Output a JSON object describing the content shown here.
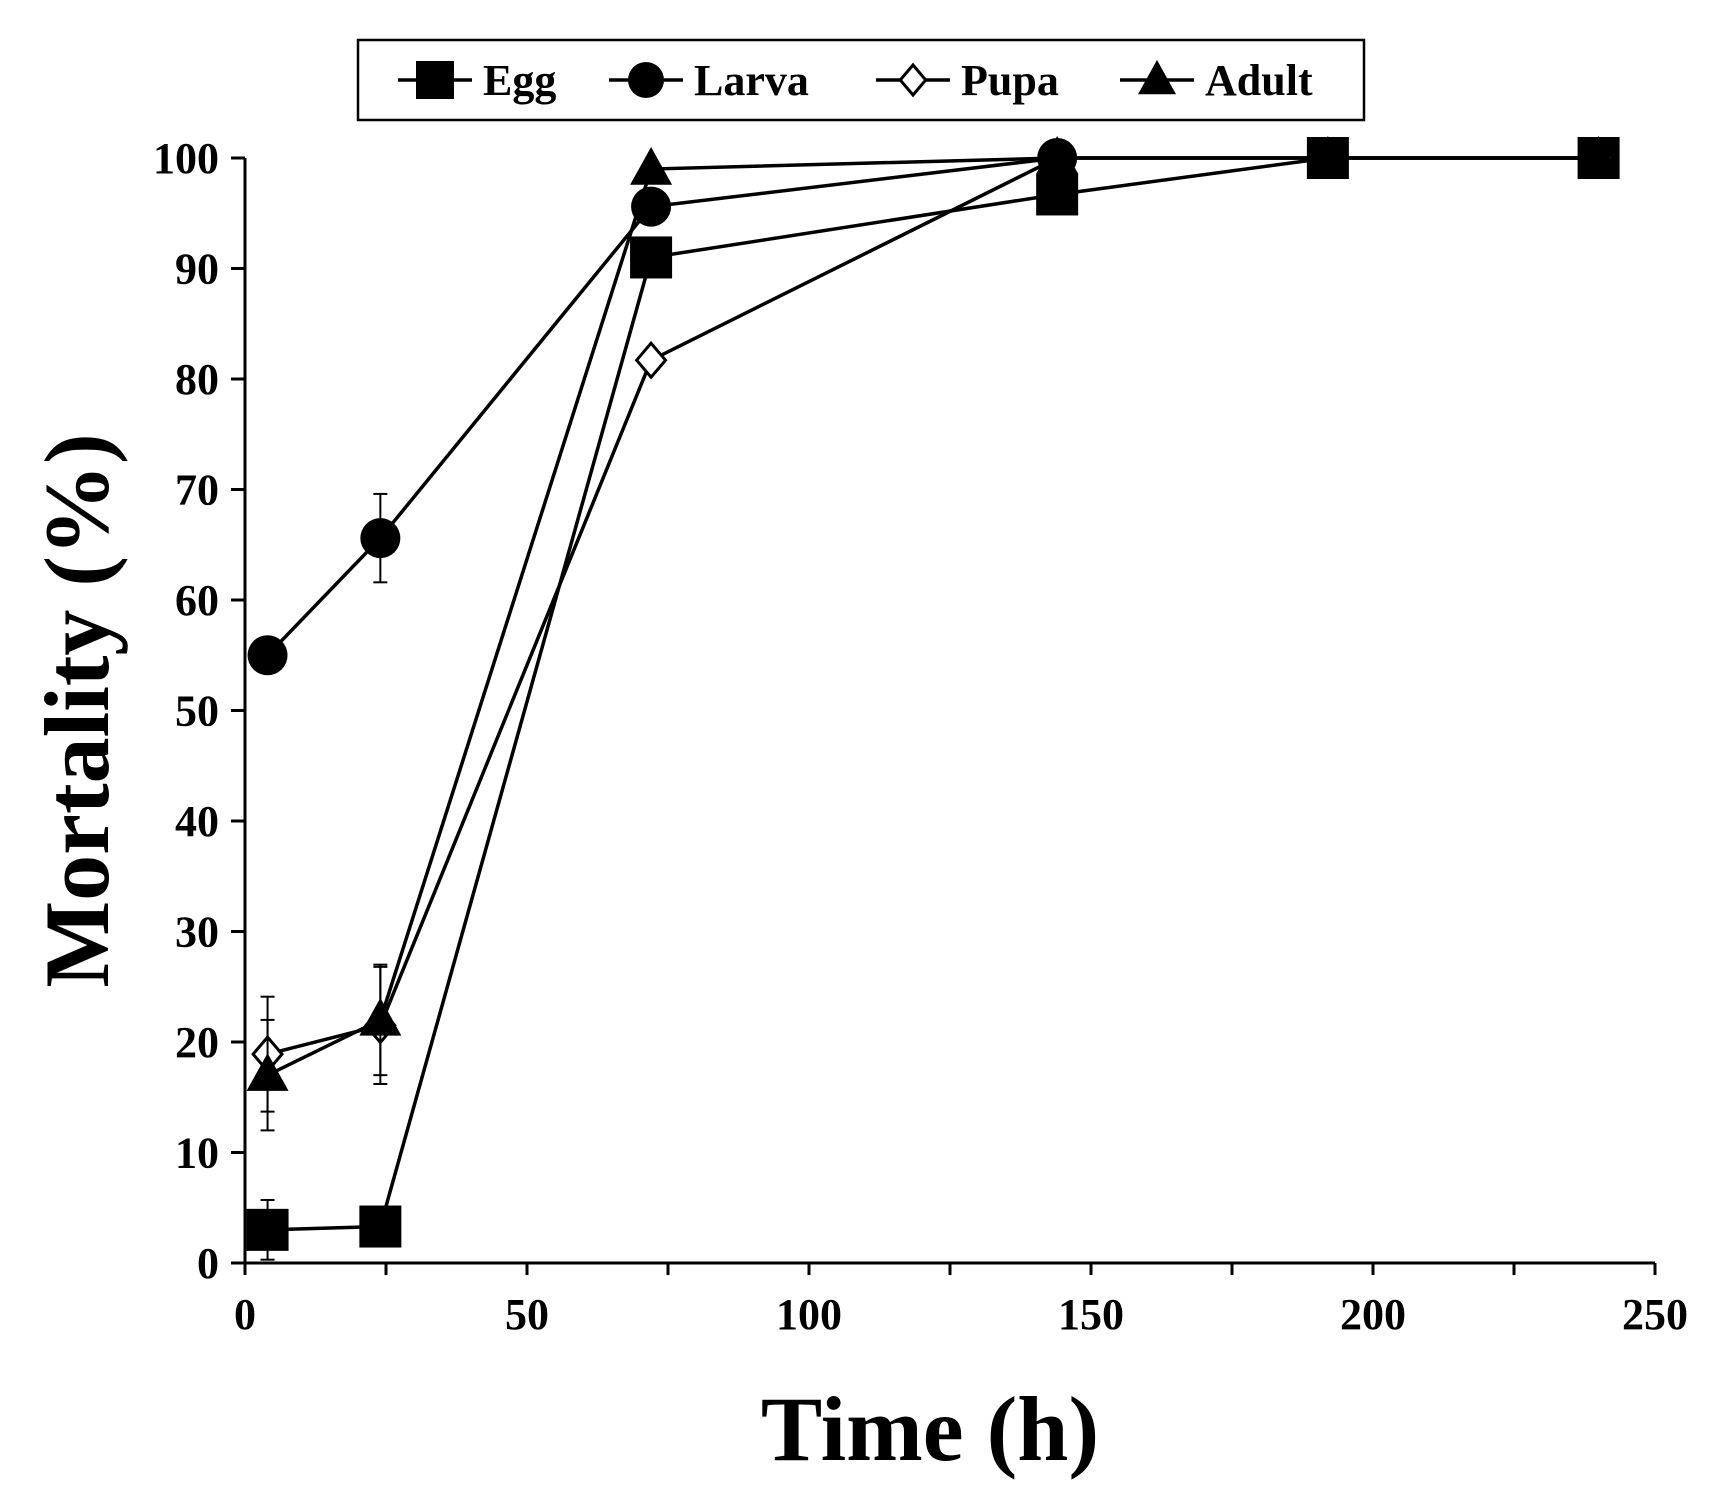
{
  "chart_data": {
    "type": "line",
    "title": "",
    "xlabel": "Time (h)",
    "ylabel": "Mortality (%)",
    "xlim": [
      0,
      250
    ],
    "ylim": [
      0,
      100
    ],
    "xticks": [
      0,
      50,
      100,
      150,
      200,
      250
    ],
    "yticks": [
      0,
      10,
      20,
      30,
      40,
      50,
      60,
      70,
      80,
      90,
      100
    ],
    "x_minor_step": 25,
    "grid": false,
    "legend_position": "top",
    "series": [
      {
        "name": "Egg",
        "marker": "square",
        "x": [
          4,
          24,
          72,
          144,
          192,
          240
        ],
        "values": [
          3,
          3.3,
          91,
          96.7,
          100,
          100
        ],
        "errors": [
          2.7,
          0,
          0,
          0,
          0,
          0
        ]
      },
      {
        "name": "Larva",
        "marker": "circle",
        "x": [
          4,
          24,
          72,
          144,
          192,
          240
        ],
        "values": [
          55,
          65.6,
          95.6,
          100,
          100,
          100
        ],
        "errors": [
          0,
          4,
          0,
          0,
          0,
          0
        ]
      },
      {
        "name": "Pupa",
        "marker": "diamond-open",
        "x": [
          4,
          24,
          72,
          144,
          192,
          240
        ],
        "values": [
          18.9,
          21.5,
          81.7,
          100,
          100,
          100
        ],
        "errors": [
          5.2,
          5.3,
          0,
          0,
          0,
          0
        ]
      },
      {
        "name": "Adult",
        "marker": "triangle",
        "x": [
          4,
          24,
          72,
          144,
          192,
          240
        ],
        "values": [
          17,
          22,
          99,
          100,
          100,
          100
        ],
        "errors": [
          5,
          5,
          0,
          0,
          0,
          0
        ]
      }
    ]
  }
}
